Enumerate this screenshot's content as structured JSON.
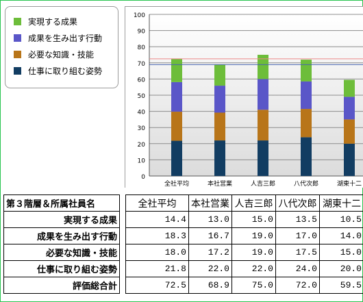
{
  "colors": {
    "jitsugen": "#6dbd3a",
    "kodo": "#5a56c8",
    "chishiki": "#b87519",
    "shisei": "#123d62",
    "line_red": "#ee8888",
    "line_blue": "#4866b0"
  },
  "chart_data": {
    "type": "bar",
    "stacked": true,
    "categories": [
      "全社平均",
      "本社営業",
      "人吉三郎",
      "八代次郎",
      "湖東十二"
    ],
    "series": [
      {
        "name": "仕事に取り組む姿勢",
        "values": [
          21.8,
          22.0,
          22.0,
          24.0,
          20.0
        ]
      },
      {
        "name": "必要な知識・技能",
        "values": [
          18.0,
          17.2,
          19.0,
          17.5,
          15.0
        ]
      },
      {
        "name": "成果を生み出す行動",
        "values": [
          18.3,
          16.7,
          19.0,
          17.0,
          14.0
        ]
      },
      {
        "name": "実現する成果",
        "values": [
          14.4,
          13.0,
          15.0,
          13.5,
          10.5
        ]
      }
    ],
    "legend": [
      "実現する成果",
      "成果を生み出す行動",
      "必要な知識・技能",
      "仕事に取り組む姿勢"
    ],
    "reference_lines": [
      72.5,
      68.9
    ],
    "ylim": [
      0,
      100
    ],
    "yticks": [
      0,
      10,
      20,
      30,
      40,
      50,
      60,
      70,
      80,
      90,
      100
    ],
    "grid": true,
    "legend_position": "top-left"
  },
  "table": {
    "header_label": "第３階層＆所属社員名",
    "columns": [
      "全社平均",
      "本社営業",
      "人吉三郎",
      "八代次郎",
      "湖東十二"
    ],
    "rows": [
      {
        "label": "実現する成果",
        "values": [
          "14.4",
          "13.0",
          "15.0",
          "13.5",
          "10.5"
        ]
      },
      {
        "label": "成果を生み出す行動",
        "values": [
          "18.3",
          "16.7",
          "19.0",
          "17.0",
          "14.0"
        ]
      },
      {
        "label": "必要な知識・技能",
        "values": [
          "18.0",
          "17.2",
          "19.0",
          "17.5",
          "15.0"
        ]
      },
      {
        "label": "仕事に取り組む姿勢",
        "values": [
          "21.8",
          "22.0",
          "22.0",
          "24.0",
          "20.0"
        ]
      },
      {
        "label": "評価総合計",
        "values": [
          "72.5",
          "68.9",
          "75.0",
          "72.0",
          "59.5"
        ]
      }
    ]
  }
}
